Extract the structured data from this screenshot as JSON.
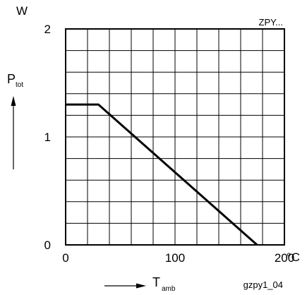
{
  "chart_data": {
    "type": "line",
    "title": "",
    "annotation": "ZPY...",
    "figure_id": "gzpy1_04",
    "ylabel": {
      "symbol": "P",
      "subscript": "tot",
      "unit": "W"
    },
    "xlabel": {
      "symbol": "T",
      "subscript": "amb",
      "unit": "°C"
    },
    "xlim": [
      0,
      200
    ],
    "ylim": [
      0,
      2
    ],
    "x_ticks": [
      {
        "value": 0,
        "label": "0"
      },
      {
        "value": 100,
        "label": "100"
      },
      {
        "value": 200,
        "label": "200"
      }
    ],
    "y_ticks": [
      {
        "value": 0,
        "label": "0"
      },
      {
        "value": 1,
        "label": "1"
      },
      {
        "value": 2,
        "label": "2"
      }
    ],
    "grid": {
      "show": true,
      "x_step": 20,
      "y_step": 0.2
    },
    "series": [
      {
        "color": "#000000",
        "points": [
          {
            "x": 0,
            "y": 1.3
          },
          {
            "x": 30,
            "y": 1.3
          },
          {
            "x": 175,
            "y": 0
          }
        ]
      }
    ]
  }
}
